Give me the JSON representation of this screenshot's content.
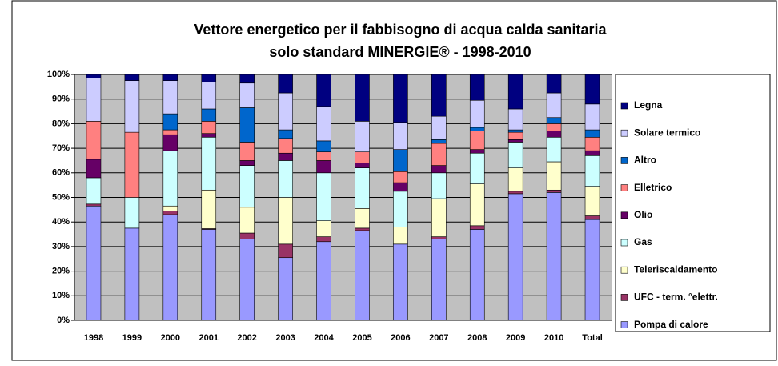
{
  "chart_data": {
    "type": "stacked_bar_100",
    "title": "Vettore energetico per il fabbisogno di acqua calda sanitaria",
    "subtitle": "solo standard MINERGIE® - 1998-2010",
    "categories": [
      "1998",
      "1999",
      "2000",
      "2001",
      "2002",
      "2003",
      "2004",
      "2005",
      "2006",
      "2007",
      "2008",
      "2009",
      "2010",
      "Total"
    ],
    "series": [
      {
        "name": "Pompa di calore",
        "color": "#9999ff",
        "values": [
          46.5,
          37.5,
          43,
          37,
          33,
          25.5,
          32,
          36.5,
          31,
          33,
          37,
          51.5,
          52,
          41
        ]
      },
      {
        "name": "UFC - term. °elettr.",
        "color": "#993366",
        "values": [
          0.8,
          0,
          1.5,
          0.3,
          2.5,
          5.5,
          2,
          1,
          0,
          1,
          1.5,
          1,
          1,
          1.5
        ]
      },
      {
        "name": "Teleriscaldamento",
        "color": "#ffffcc",
        "values": [
          0,
          0,
          2,
          15.7,
          10.5,
          19,
          6.5,
          8,
          7,
          15.5,
          17,
          9.5,
          11.5,
          12
        ]
      },
      {
        "name": "Gas",
        "color": "#ccffff",
        "values": [
          10.7,
          12.5,
          22.5,
          21.5,
          17,
          15,
          19.5,
          16.5,
          14.5,
          10.5,
          12.5,
          10.5,
          10,
          12.5
        ]
      },
      {
        "name": "Olio",
        "color": "#660066",
        "values": [
          7.5,
          0,
          6.5,
          1.5,
          2,
          3,
          5,
          2,
          3.5,
          3,
          1.5,
          1,
          2.5,
          2
        ]
      },
      {
        "name": "Elletrico",
        "color": "#ff8080",
        "values": [
          15.5,
          26.5,
          2,
          5,
          7.5,
          6,
          3.5,
          4.5,
          4.5,
          9,
          7.5,
          3,
          3,
          5.5
        ]
      },
      {
        "name": "Altro",
        "color": "#0066cc",
        "values": [
          0,
          0,
          6.5,
          5,
          14,
          3.5,
          4.5,
          0,
          9,
          1.5,
          1.5,
          1,
          2.5,
          3
        ]
      },
      {
        "name": "Solare termico",
        "color": "#ccccff",
        "values": [
          17.5,
          21,
          13.5,
          11,
          10,
          15,
          14,
          12.5,
          11,
          9.5,
          11,
          8.5,
          10,
          10.5
        ]
      },
      {
        "name": "Legna",
        "color": "#000080",
        "values": [
          1.5,
          2.5,
          2.5,
          3,
          3.5,
          7.5,
          13,
          19,
          19.5,
          17,
          10.5,
          14,
          7.5,
          12
        ]
      }
    ],
    "ylim": [
      0,
      100
    ],
    "yticks": [
      {
        "value": 0,
        "label": "0%"
      },
      {
        "value": 10,
        "label": "10%"
      },
      {
        "value": 20,
        "label": "20%"
      },
      {
        "value": 30,
        "label": "30%"
      },
      {
        "value": 40,
        "label": "40%"
      },
      {
        "value": 50,
        "label": "50%"
      },
      {
        "value": 60,
        "label": "60%"
      },
      {
        "value": 70,
        "label": "70%"
      },
      {
        "value": 80,
        "label": "80%"
      },
      {
        "value": 90,
        "label": "90%"
      },
      {
        "value": 100,
        "label": "100%"
      }
    ],
    "grid": true,
    "legend": "right"
  }
}
